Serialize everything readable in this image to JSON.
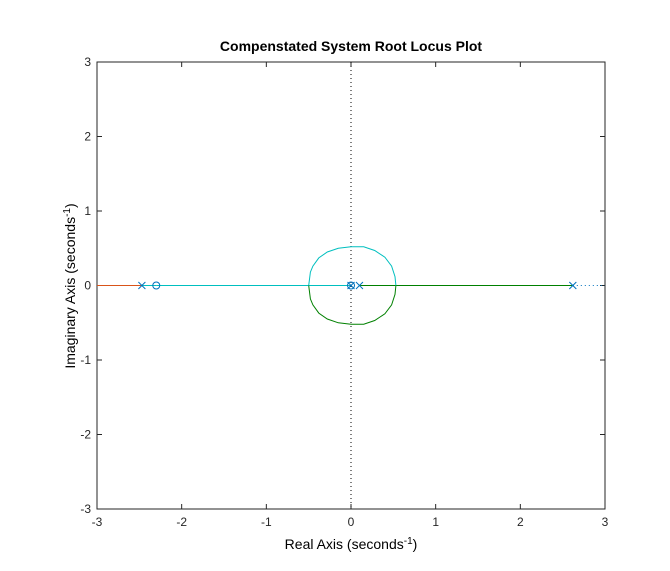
{
  "chart_data": {
    "type": "line",
    "title": "Compenstated System Root Locus Plot",
    "xlabel": {
      "text": "Real Axis (seconds",
      "sup": "-1",
      "tail": ")"
    },
    "ylabel": {
      "text": "Imaginary Axis (seconds",
      "sup": "-1",
      "tail": ")"
    },
    "xlim": [
      -3,
      3
    ],
    "ylim": [
      -3,
      3
    ],
    "xticks": [
      -3,
      -2,
      -1,
      0,
      1,
      2,
      3
    ],
    "yticks": [
      -3,
      -2,
      -1,
      0,
      1,
      2,
      3
    ],
    "grid": false,
    "imaginary_axis_line": "dotted",
    "poles": [
      [
        -2.47,
        0
      ],
      [
        0,
        0
      ],
      [
        0.1,
        0
      ],
      [
        2.62,
        0
      ]
    ],
    "zeros": [
      [
        -2.3,
        0
      ],
      [
        0,
        0
      ]
    ],
    "marker_color": "#0072BD",
    "series": [
      {
        "color": "#D95319",
        "points": [
          [
            -3,
            0
          ],
          [
            -2.47,
            0
          ]
        ]
      },
      {
        "color": "#00BFBF",
        "points": [
          [
            -2.47,
            0
          ],
          [
            -2.3,
            0
          ]
        ]
      },
      {
        "color": "#00BFBF",
        "points": [
          [
            -0.5,
            0
          ],
          [
            -2.3,
            0
          ]
        ]
      },
      {
        "color": "#00BFBF",
        "points": [
          [
            0,
            0
          ],
          [
            -0.5,
            0
          ]
        ]
      },
      {
        "color": "#008000",
        "points": [
          [
            0.1,
            0
          ],
          [
            0.53,
            0
          ]
        ]
      },
      {
        "color": "#008000",
        "points": [
          [
            2.62,
            0
          ],
          [
            0.53,
            0
          ]
        ]
      },
      {
        "color": "#00BFBF",
        "points": [
          [
            -0.5,
            0
          ],
          [
            -0.48,
            0.18
          ],
          [
            -0.45,
            0.26
          ],
          [
            -0.38,
            0.37
          ],
          [
            -0.28,
            0.45
          ],
          [
            -0.15,
            0.5
          ],
          [
            0,
            0.52
          ],
          [
            0.15,
            0.52
          ],
          [
            0.28,
            0.47
          ],
          [
            0.4,
            0.38
          ],
          [
            0.48,
            0.26
          ],
          [
            0.52,
            0.12
          ],
          [
            0.53,
            0
          ]
        ]
      },
      {
        "color": "#008000",
        "points": [
          [
            -0.5,
            0
          ],
          [
            -0.48,
            -0.18
          ],
          [
            -0.45,
            -0.26
          ],
          [
            -0.38,
            -0.37
          ],
          [
            -0.28,
            -0.45
          ],
          [
            -0.15,
            -0.5
          ],
          [
            0,
            -0.52
          ],
          [
            0.15,
            -0.52
          ],
          [
            0.28,
            -0.47
          ],
          [
            0.4,
            -0.38
          ],
          [
            0.48,
            -0.26
          ],
          [
            0.52,
            -0.12
          ],
          [
            0.53,
            0
          ]
        ]
      },
      {
        "color": "#0072BD",
        "style": "dotted",
        "points": [
          [
            2.62,
            0
          ],
          [
            3,
            0
          ]
        ]
      }
    ]
  }
}
